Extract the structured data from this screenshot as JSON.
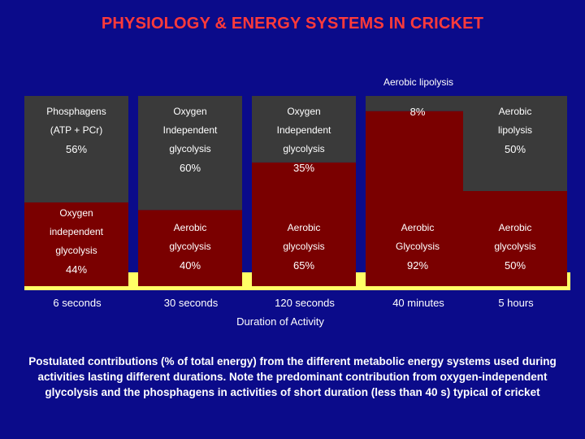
{
  "title": "PHYSIOLOGY & ENERGY SYSTEMS IN CRICKET",
  "top_label": "Aerobic lipolysis",
  "xlabel": "Duration of Activity",
  "caption": "Postulated contributions (% of total energy) from the different metabolic energy systems used during activities lasting different durations. Note the predominant contribution from oxygen-independent glycolysis and the phosphagens in activities of short duration (less than 40 s) typical of cricket",
  "colors": {
    "background": "#0b0b8a",
    "top_segment": "#3a3a3a",
    "bottom_segment": "#7a0000",
    "title": "#ff3a3a",
    "baseline": "#ffff66"
  },
  "chart_data": {
    "type": "bar",
    "stacked": true,
    "categories": [
      "6 seconds",
      "30 seconds",
      "120 seconds",
      "40 minutes",
      "5 hours"
    ],
    "bars": [
      {
        "duration": "6 seconds",
        "segments": [
          {
            "lines": [
              "Phosphagens",
              "(ATP + PCr)"
            ],
            "pct": "56%",
            "value": 56
          },
          {
            "lines": [
              "Oxygen",
              "independent",
              "glycolysis"
            ],
            "pct": "44%",
            "value": 44
          }
        ]
      },
      {
        "duration": "30 seconds",
        "segments": [
          {
            "lines": [
              "Oxygen",
              "Independent",
              "glycolysis"
            ],
            "pct": "60%",
            "value": 60
          },
          {
            "lines": [
              "Aerobic",
              "glycolysis"
            ],
            "pct": "40%",
            "value": 40
          }
        ]
      },
      {
        "duration": "120 seconds",
        "segments": [
          {
            "lines": [
              "Oxygen",
              "Independent",
              "glycolysis"
            ],
            "pct": "35%",
            "value": 35
          },
          {
            "lines": [
              "Aerobic",
              "glycolysis"
            ],
            "pct": "65%",
            "value": 65
          }
        ]
      },
      {
        "duration": "40 minutes",
        "segments": [
          {
            "lines": [],
            "pct": "8%",
            "value": 8
          },
          {
            "lines": [
              "Aerobic",
              "Glycolysis"
            ],
            "pct": "92%",
            "value": 92
          }
        ]
      },
      {
        "duration": "5 hours",
        "segments": [
          {
            "lines": [
              "Aerobic",
              "lipolysis"
            ],
            "pct": "50%",
            "value": 50
          },
          {
            "lines": [
              "Aerobic",
              "glycolysis"
            ],
            "pct": "50%",
            "value": 50
          }
        ]
      }
    ]
  }
}
